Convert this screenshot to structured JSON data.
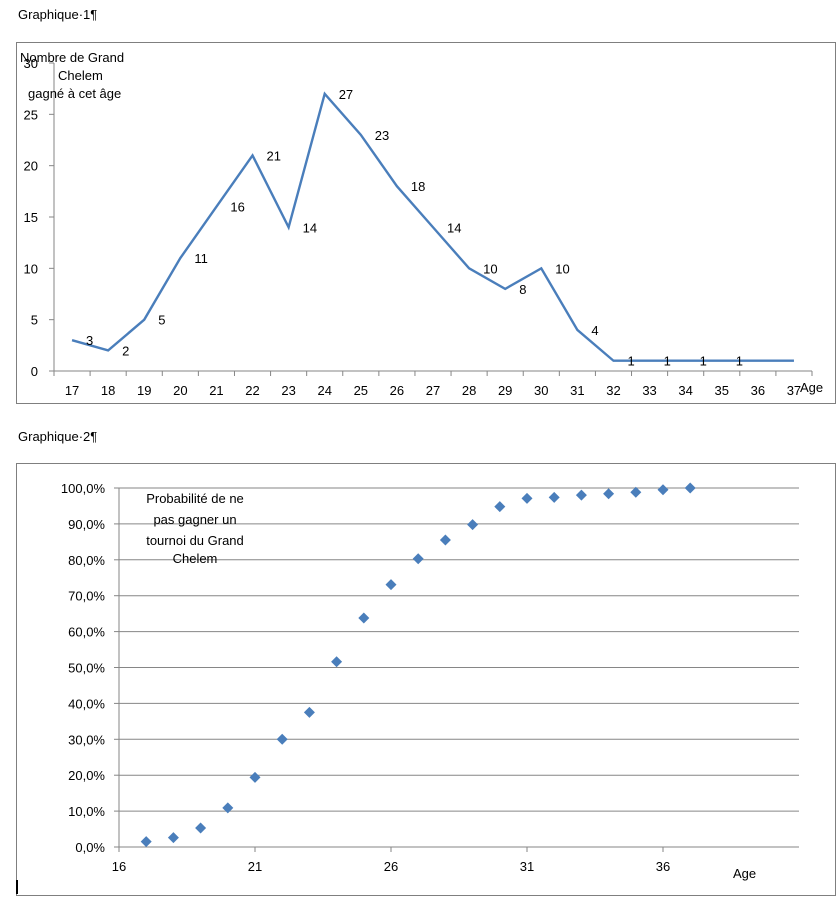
{
  "captions": {
    "chart1": "Graphique·1¶",
    "chart2": "Graphique·2¶"
  },
  "chart_data": [
    {
      "type": "line",
      "title": "",
      "ylabel_lines": [
        "Nombre de Grand",
        "Chelem",
        "gagné à cet âge"
      ],
      "xlabel": "Age",
      "x": [
        17,
        18,
        19,
        20,
        21,
        22,
        23,
        24,
        25,
        26,
        27,
        28,
        29,
        30,
        31,
        32,
        33,
        34,
        35,
        36,
        37
      ],
      "xticks": [
        "17",
        "18",
        "19",
        "20",
        "21",
        "22",
        "23",
        "24",
        "25",
        "26",
        "27",
        "28",
        "29",
        "30",
        "31",
        "32",
        "33",
        "34",
        "35",
        "36",
        "37"
      ],
      "values": [
        3,
        2,
        5,
        11,
        16,
        21,
        14,
        27,
        23,
        18,
        14,
        10,
        8,
        10,
        4,
        1,
        1,
        1,
        1,
        1,
        1
      ],
      "data_labels": [
        "3",
        "2",
        "5",
        "11",
        "16",
        "21",
        "14",
        "27",
        "23",
        "18",
        "14",
        "10",
        "8",
        "10",
        "4",
        "1",
        "1",
        "1",
        "1",
        "",
        ""
      ],
      "ylim": [
        0,
        30
      ],
      "yticks": [
        "0",
        "5",
        "10",
        "15",
        "20",
        "25",
        "30"
      ],
      "line_color": "#4a7ebb",
      "grid": false
    },
    {
      "type": "scatter",
      "title": "",
      "annotation_lines": [
        "Probabilité de ne",
        "pas gagner un",
        "tournoi du Grand",
        "Chelem"
      ],
      "xlabel": "Age",
      "x": [
        17,
        18,
        19,
        20,
        21,
        22,
        23,
        24,
        25,
        26,
        27,
        28,
        29,
        30,
        31,
        32,
        33,
        34,
        35,
        36,
        37
      ],
      "y": [
        1.5,
        2.6,
        5.3,
        10.9,
        19.4,
        30.0,
        37.5,
        51.6,
        63.8,
        73.1,
        80.3,
        85.5,
        89.8,
        94.8,
        97.1,
        97.4,
        98.0,
        98.4,
        98.8,
        99.5,
        100.0
      ],
      "xlim": [
        16,
        41
      ],
      "xticks": [
        "16",
        "21",
        "26",
        "31",
        "36"
      ],
      "ylim": [
        0,
        100
      ],
      "yticks": [
        "0,0%",
        "10,0%",
        "20,0%",
        "30,0%",
        "40,0%",
        "50,0%",
        "60,0%",
        "70,0%",
        "80,0%",
        "90,0%",
        "100,0%"
      ],
      "marker_color": "#4a7ebb",
      "grid": true
    }
  ]
}
